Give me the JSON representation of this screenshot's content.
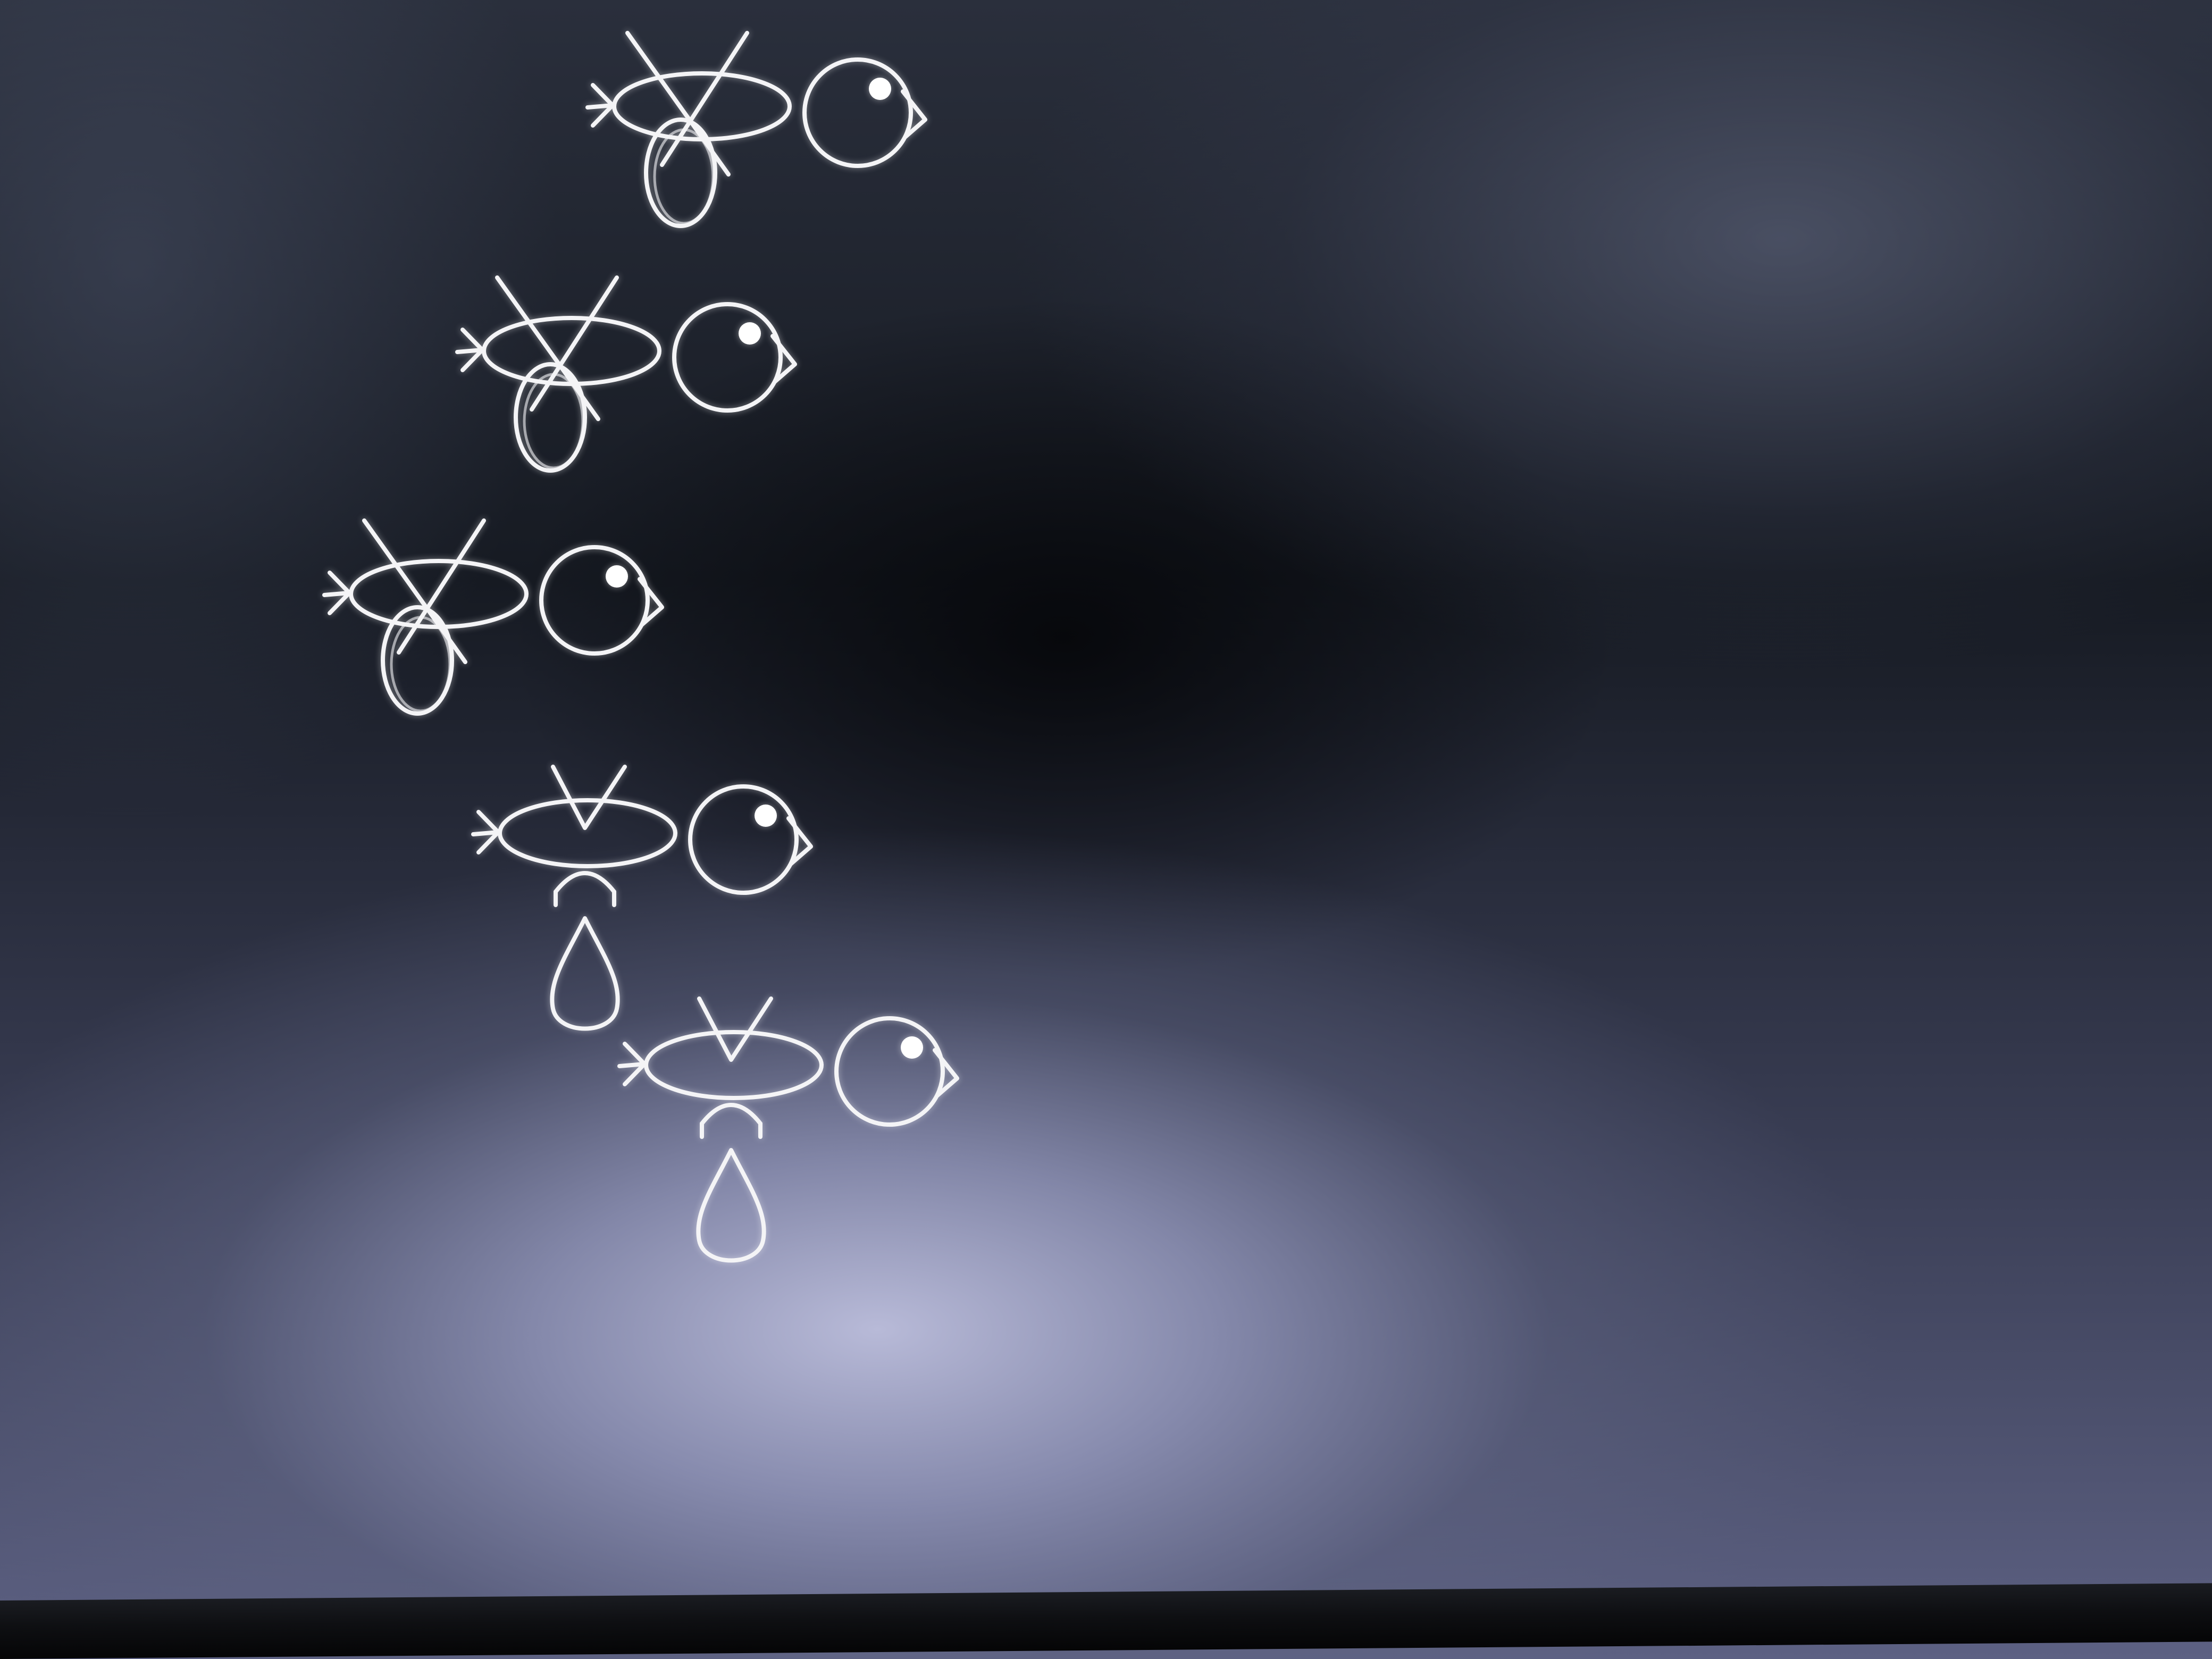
{
  "screen": {
    "background": "#0c0e12",
    "stroke_color": "#f4f4f6"
  },
  "sprites": [
    {
      "name": "bird-1",
      "wing": "down",
      "drop": false
    },
    {
      "name": "bird-2",
      "wing": "down",
      "drop": false
    },
    {
      "name": "bird-3",
      "wing": "down",
      "drop": false
    },
    {
      "name": "bird-4",
      "wing": "up",
      "drop": true
    },
    {
      "name": "bird-5",
      "wing": "up",
      "drop": true
    }
  ]
}
